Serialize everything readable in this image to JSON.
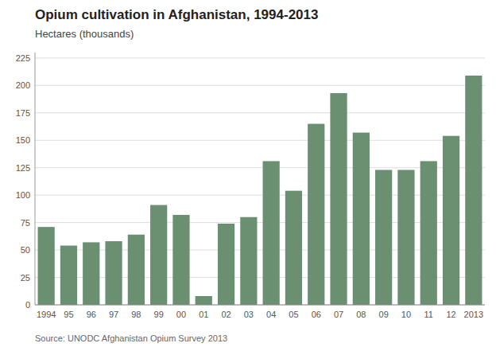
{
  "chart_data": {
    "type": "bar",
    "title": "Opium cultivation in Afghanistan, 1994-2013",
    "ylabel": "Hectares (thousands)",
    "source": "Source: UNODC Afghanistan Opium Survey 2013",
    "categories": [
      "1994",
      "95",
      "96",
      "97",
      "98",
      "99",
      "00",
      "01",
      "02",
      "03",
      "04",
      "05",
      "06",
      "07",
      "08",
      "09",
      "10",
      "11",
      "12",
      "2013"
    ],
    "values": [
      71,
      54,
      57,
      58,
      64,
      91,
      82,
      8,
      74,
      80,
      131,
      104,
      165,
      193,
      157,
      123,
      123,
      131,
      154,
      209
    ],
    "color": "#6b8f71",
    "ylim": [
      0,
      230
    ],
    "yticks": [
      0,
      25,
      50,
      75,
      100,
      125,
      150,
      175,
      200,
      225
    ],
    "grid": true
  }
}
